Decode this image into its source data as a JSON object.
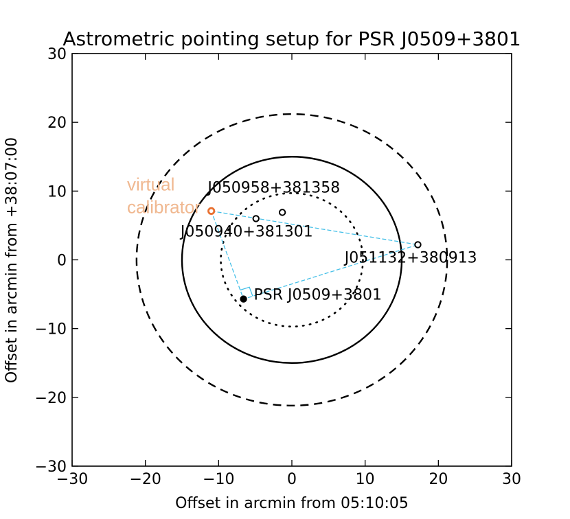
{
  "chart_data": {
    "type": "scatter",
    "title": "Astrometric pointing setup for PSR J0509+3801",
    "xlabel": "Offset in arcmin from 05:10:05",
    "ylabel": "Offset in arcmin from +38:07:00",
    "xlim": [
      -30,
      30
    ],
    "ylim": [
      -30,
      30
    ],
    "xticks": [
      -30,
      -20,
      -10,
      0,
      10,
      20,
      30
    ],
    "yticks": [
      -30,
      -20,
      -10,
      0,
      10,
      20,
      30
    ],
    "xtick_labels": [
      "−30",
      "−20",
      "−10",
      "0",
      "10",
      "20",
      "30"
    ],
    "ytick_labels": [
      "−30",
      "−20",
      "−10",
      "0",
      "10",
      "20",
      "30"
    ],
    "grid": false,
    "circles": [
      {
        "cx": 0,
        "cy": 0,
        "r": 15,
        "style": "solid"
      },
      {
        "cx": 0,
        "cy": 0,
        "r": 21.2,
        "style": "dashed"
      },
      {
        "cx": 0,
        "cy": 0,
        "r": 9.7,
        "style": "dotted",
        "partial": true
      }
    ],
    "points": [
      {
        "label": "PSR J0509+3801",
        "x": -6.6,
        "y": -5.7,
        "kind": "target"
      },
      {
        "label": "J050940+381301",
        "x": -4.9,
        "y": 6.0,
        "kind": "calibrator"
      },
      {
        "label": "J050958+381358",
        "x": -1.3,
        "y": 6.9,
        "kind": "calibrator"
      },
      {
        "label": "J051132+380913",
        "x": 17.2,
        "y": 2.2,
        "kind": "calibrator"
      },
      {
        "label": "virtual calibrator",
        "x": -11.0,
        "y": 7.1,
        "kind": "virtual"
      }
    ],
    "annotations": [
      {
        "text": "virtual",
        "x": -22.5,
        "y": 10.1
      },
      {
        "text": "calibrator",
        "x": -22.5,
        "y": 6.8
      },
      {
        "text": "J050958+381358",
        "x": -11.5,
        "y": 9.8
      },
      {
        "text": "J050940+381301",
        "x": -15.2,
        "y": 3.4
      },
      {
        "text": "J051132+380913",
        "x": 7.2,
        "y": -0.4
      },
      {
        "text": "PSR J0509+3801",
        "x": -5.2,
        "y": -5.8
      }
    ],
    "triangle": {
      "from": "virtual calibrator",
      "vertices": [
        "virtual calibrator",
        "J051132+380913",
        "PSR J0509+3801"
      ],
      "style": "dashed",
      "color": "#45c0e8"
    },
    "colors": {
      "target": "#000000",
      "calibrator": "#000000",
      "virtual": "#e87030",
      "virtual_label": "#f0b890",
      "triangle": "#45c0e8"
    }
  }
}
